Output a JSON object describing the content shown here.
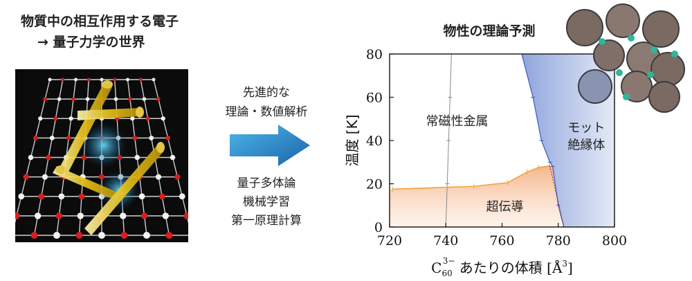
{
  "left": {
    "title_line1": "物質中の相互作用する電子",
    "title_line2": "→ 量子力学の世界"
  },
  "middle": {
    "top_lines": [
      "先進的な",
      "理論・数値解析"
    ],
    "bottom_lines": [
      "量子多体論",
      "機械学習",
      "第一原理計算"
    ]
  },
  "chart_title": "物性の理論予測",
  "chart_data": {
    "type": "line",
    "xlabel": "C60^3− あたりの体積 [Å³]",
    "xlabel_parts": {
      "base": "C",
      "sub": "60",
      "sup": "3−",
      "rest": " あたりの体積 [Å",
      "unit_sup": "3",
      "end": "]"
    },
    "ylabel": "温度 [K]",
    "xlim": [
      720,
      800
    ],
    "ylim": [
      0,
      80
    ],
    "xticks": [
      720,
      740,
      760,
      780,
      800
    ],
    "yticks": [
      0,
      20,
      40,
      60,
      80
    ],
    "region_labels": {
      "metal": "常磁性金属",
      "mott_line1": "モット",
      "mott_line2": "絶縁体",
      "sc": "超伝導"
    },
    "series": [
      {
        "role": "superconducting-boundary",
        "points": [
          [
            721,
            17.5
          ],
          [
            750,
            18.8
          ],
          [
            762,
            20.5
          ],
          [
            769,
            25.5
          ],
          [
            773,
            27.5
          ],
          [
            777,
            28.3
          ]
        ]
      },
      {
        "role": "metal-crossover",
        "points": [
          [
            740,
            0
          ],
          [
            740.5,
            20
          ],
          [
            741,
            40
          ],
          [
            741.5,
            60
          ],
          [
            742,
            80
          ]
        ]
      },
      {
        "role": "mott-boundary",
        "points": [
          [
            767,
            80
          ],
          [
            771,
            60
          ],
          [
            774,
            40
          ],
          [
            777,
            30
          ],
          [
            778,
            28
          ],
          [
            780,
            10
          ],
          [
            782,
            0
          ]
        ]
      }
    ],
    "colors": {
      "sc": "#f5b98a",
      "mott": "#9fb2e0",
      "sc_line": "#f0a43a",
      "mott_line": "#3a56c8",
      "crossover_line": "#888888"
    }
  }
}
